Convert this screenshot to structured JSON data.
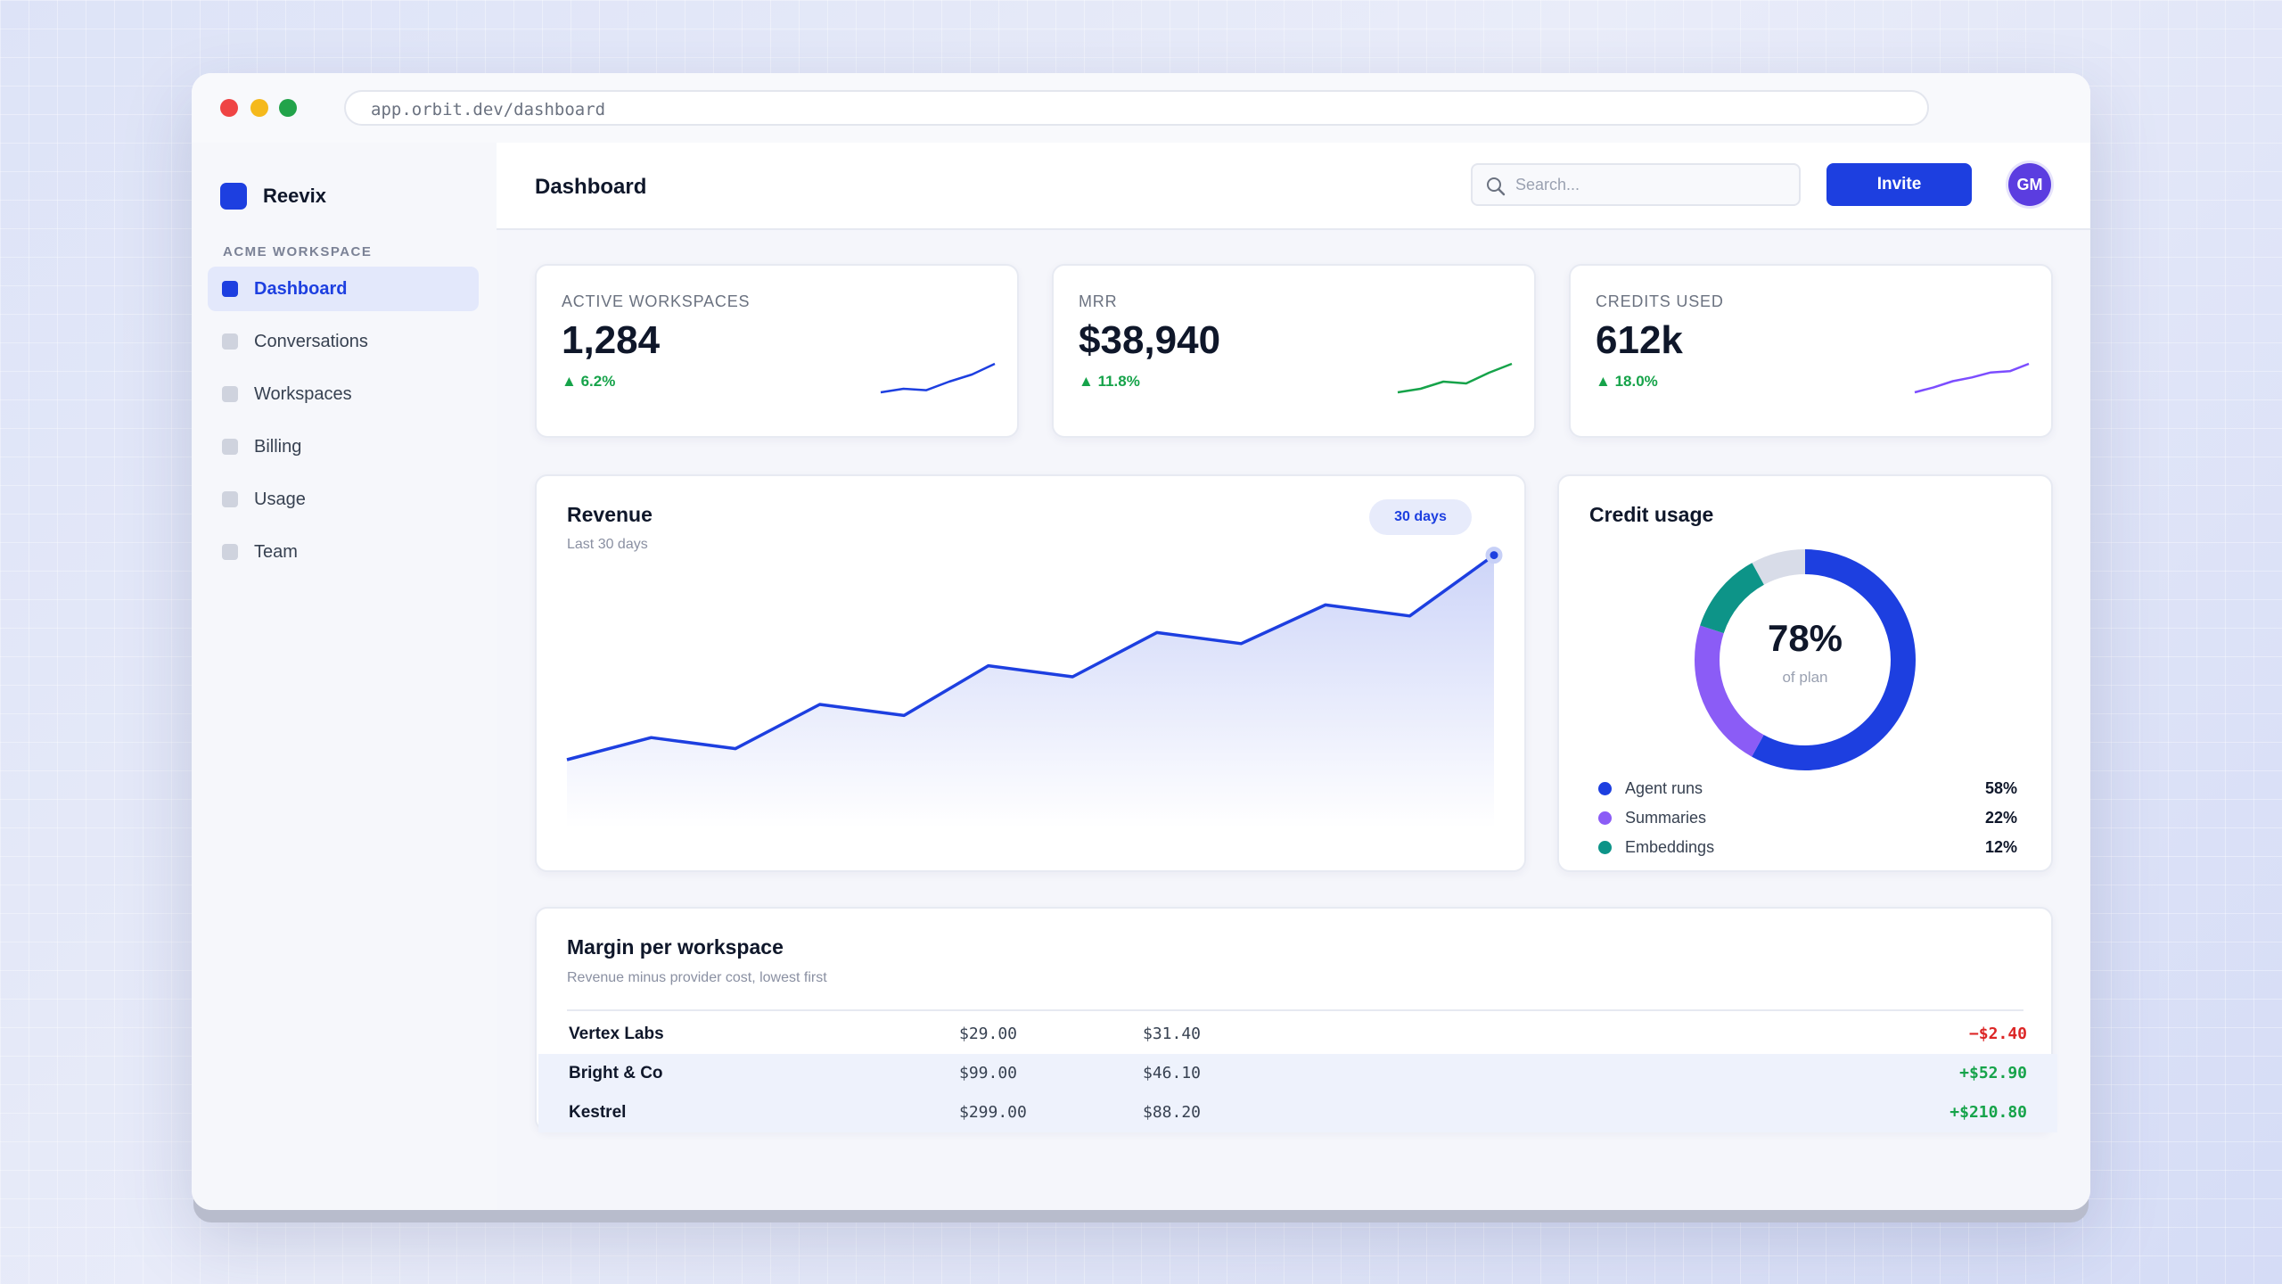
{
  "browser": {
    "url": "app.orbit.dev/dashboard"
  },
  "sidebar": {
    "brand": "Reevix",
    "section_label": "ACME WORKSPACE",
    "items": [
      {
        "label": "Dashboard",
        "active": true
      },
      {
        "label": "Conversations",
        "active": false
      },
      {
        "label": "Workspaces",
        "active": false
      },
      {
        "label": "Billing",
        "active": false
      },
      {
        "label": "Usage",
        "active": false
      },
      {
        "label": "Team",
        "active": false
      }
    ]
  },
  "header": {
    "title": "Dashboard",
    "search_placeholder": "Search...",
    "invite_label": "Invite",
    "avatar_initials": "GM"
  },
  "stats": [
    {
      "label": "ACTIVE WORKSPACES",
      "value": "1,284",
      "delta": "6.2%",
      "color": "#1d3fe0",
      "trend": [
        3,
        4,
        3.6,
        6,
        8,
        11
      ]
    },
    {
      "label": "MRR",
      "value": "$38,940",
      "delta": "11.8%",
      "color": "#16a34a",
      "trend": [
        3,
        4,
        6,
        5.5,
        8.5,
        11
      ]
    },
    {
      "label": "CREDITS USED",
      "value": "612k",
      "delta": "18.0%",
      "color": "#7c4dff",
      "trend": [
        2,
        4,
        6.5,
        8,
        10,
        10.5,
        13.5
      ]
    }
  ],
  "revenue": {
    "title": "Revenue",
    "subtitle": "Last 30 days",
    "range_label": "30 days",
    "color": "#1d3fe0"
  },
  "chart_data": {
    "type": "area",
    "title": "Revenue",
    "subtitle": "Last 30 days",
    "series": [
      {
        "values": [
          10,
          14,
          12,
          20,
          18,
          27,
          25,
          33,
          31,
          38,
          36,
          47
        ]
      }
    ],
    "ylim": [
      0,
      50
    ],
    "grid": false
  },
  "credit_usage": {
    "title": "Credit usage",
    "center_value": "78%",
    "center_label": "of plan",
    "segments": [
      {
        "name": "Agent runs",
        "value": "58%",
        "pct": 58,
        "color": "#1d3fe0"
      },
      {
        "name": "Summaries",
        "value": "22%",
        "pct": 22,
        "color": "#8b5cf6"
      },
      {
        "name": "Embeddings",
        "value": "12%",
        "pct": 12,
        "color": "#0d9488"
      }
    ],
    "remainder_color": "#d8dce8"
  },
  "margin_table": {
    "title": "Margin per workspace",
    "subtitle": "Revenue minus provider cost, lowest first",
    "rows": [
      {
        "name": "Vertex Labs",
        "revenue": "$29.00",
        "cost": "$31.40",
        "margin": "−$2.40",
        "negative": true
      },
      {
        "name": "Bright & Co",
        "revenue": "$99.00",
        "cost": "$46.10",
        "margin": "+$52.90",
        "negative": false
      },
      {
        "name": "Kestrel",
        "revenue": "$299.00",
        "cost": "$88.20",
        "margin": "+$210.80",
        "negative": false
      }
    ]
  },
  "colors": {
    "accent": "#1d3fe0",
    "positive": "#16a34a",
    "negative": "#dc2626"
  }
}
